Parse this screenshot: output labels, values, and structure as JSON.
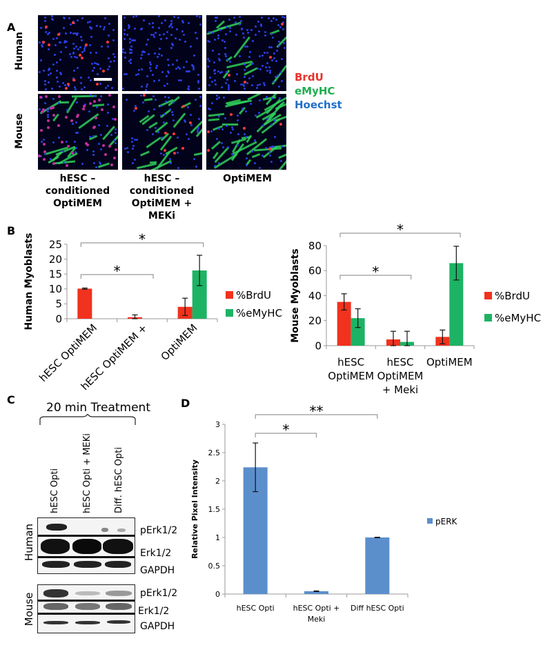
{
  "panel_labels": {
    "a": "A",
    "b": "B",
    "c": "C",
    "d": "D"
  },
  "panel_a": {
    "row_labels": [
      "Human",
      "Mouse"
    ],
    "column_labels": [
      [
        "hESC –",
        "conditioned",
        "OptiMEM"
      ],
      [
        "hESC –",
        "conditioned",
        "OptiMEM +",
        "MEKi"
      ],
      [
        "OptiMEM"
      ]
    ],
    "stain_legend": [
      {
        "label": "BrdU",
        "color": "#e8322a"
      },
      {
        "label": "eMyHC",
        "color": "#1fae4f"
      },
      {
        "label": "Hoechst",
        "color": "#1f6fc7"
      }
    ]
  },
  "panel_c": {
    "treatment_label": "20 min Treatment",
    "lanes": [
      "hESC Opti",
      "hESC Opti + MEKi",
      "Diff. hESC Opti"
    ],
    "species": [
      "Human",
      "Mouse"
    ],
    "bands": [
      "pErk1/2",
      "Erk1/2",
      "GAPDH"
    ]
  },
  "chart_data": [
    {
      "type": "bar",
      "ylabel": "Human Myoblasts",
      "categories": [
        "hESC OptiMEM",
        "hESC OptiMEM +",
        "OptiMEM"
      ],
      "ylim": [
        0,
        25
      ],
      "yticks": [
        "0",
        "5",
        "10",
        "15",
        "20",
        "25"
      ],
      "legend_position": "right",
      "series": [
        {
          "name": "%BrdU",
          "color": "#f0321e",
          "values": [
            10.1,
            0.5,
            4.0
          ],
          "errors": [
            0.2,
            0.8,
            2.9
          ]
        },
        {
          "name": "%eMyHC",
          "color": "#1db364",
          "values": [
            0,
            0,
            16.2
          ],
          "errors": [
            0,
            0,
            5.1
          ]
        }
      ],
      "significance": [
        {
          "from": 0,
          "to": 2,
          "label": "*"
        },
        {
          "from": 0,
          "to": 1,
          "label": "*"
        }
      ]
    },
    {
      "type": "bar",
      "ylabel": "Mouse Myoblasts",
      "categories": [
        [
          "hESC",
          "OptiMEM"
        ],
        [
          "hESC",
          "OptiMEM",
          "+ Meki"
        ],
        [
          "OptiMEM"
        ]
      ],
      "ylim": [
        0,
        80
      ],
      "yticks": [
        "0",
        "20",
        "40",
        "60",
        "80"
      ],
      "legend_position": "right",
      "series": [
        {
          "name": "%BrdU",
          "color": "#f0321e",
          "values": [
            35,
            5,
            7
          ],
          "errors": [
            6.5,
            6.5,
            5.5
          ]
        },
        {
          "name": "%eMyHC",
          "color": "#1db364",
          "values": [
            22,
            3,
            66
          ],
          "errors": [
            7.5,
            8.5,
            13.5
          ]
        }
      ],
      "significance": [
        {
          "from": 0,
          "to": 2,
          "label": "*"
        },
        {
          "from": 0,
          "to": 1,
          "label": "*"
        }
      ]
    },
    {
      "type": "bar",
      "ylabel": "Relative Pixel Intensity",
      "categories": [
        [
          "hESC Opti"
        ],
        [
          "hESC Opti +",
          "Meki"
        ],
        [
          "Diff hESC Opti"
        ]
      ],
      "ylim": [
        0,
        3
      ],
      "yticks": [
        "0",
        "0.5",
        "1",
        "1.5",
        "2",
        "2.5",
        "3"
      ],
      "legend_position": "right",
      "series": [
        {
          "name": "pERK",
          "color": "#5b8fcc",
          "values": [
            2.24,
            0.05,
            1.0
          ],
          "errors": [
            0.43,
            0.005,
            0.005
          ]
        }
      ],
      "significance": [
        {
          "from": 0,
          "to": 2,
          "label": "**"
        },
        {
          "from": 0,
          "to": 1,
          "label": "*"
        }
      ]
    }
  ]
}
